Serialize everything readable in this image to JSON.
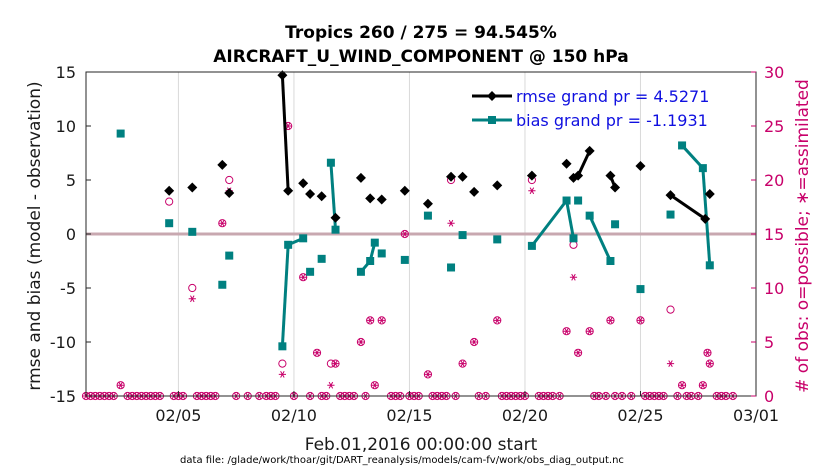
{
  "chart_data": {
    "type": "line",
    "title_line1": "Tropics 260 / 275 = 94.545%",
    "title_line2": "AIRCRAFT_U_WIND_COMPONENT @ 150 hPa",
    "xlabel": "Feb.01,2016 00:00:00 start",
    "ylabel_left": "rmse and bias (model - observation)",
    "ylabel_right": "# of obs: o=possible; ∗=assimilated",
    "footer": "data file: /glade/work/thoar/git/DART_reanalysis/models/cam-fv/work/obs_diag_output.nc",
    "x_range": [
      1.0,
      30.0
    ],
    "ylim_left": [
      -15,
      15
    ],
    "ylim_right": [
      0,
      30
    ],
    "x_ticks": [
      {
        "x": 5,
        "label": "02/05"
      },
      {
        "x": 10,
        "label": "02/10"
      },
      {
        "x": 15,
        "label": "02/15"
      },
      {
        "x": 20,
        "label": "02/20"
      },
      {
        "x": 25,
        "label": "02/25"
      },
      {
        "x": 30,
        "label": "03/01"
      }
    ],
    "y_ticks_left": [
      15,
      10,
      5,
      0,
      -5,
      -10,
      -15
    ],
    "y_tick_labels_left": [
      "15",
      "10",
      "5",
      "0",
      "-5",
      "-10",
      "-15"
    ],
    "y_ticks_right": [
      30,
      25,
      20,
      15,
      10,
      5,
      0
    ],
    "y_tick_labels_right": [
      "30",
      "25",
      "20",
      "15",
      "10",
      "5",
      "0"
    ],
    "colors": {
      "rmse": "#000000",
      "bias": "#008080",
      "obs": "#c8006a",
      "zero_line": "#c8a8b0",
      "legend_text": "#1010e0",
      "grid": "#d9d9d9"
    },
    "series": [
      {
        "name": "rmse",
        "legend": "rmse grand pr = 4.5271",
        "points": [
          [
            4.6,
            4.0
          ],
          [
            5.6,
            4.3
          ],
          [
            6.9,
            6.4
          ],
          [
            7.2,
            3.8
          ],
          [
            9.5,
            14.7
          ],
          [
            9.75,
            4.0
          ],
          [
            10.4,
            4.7
          ],
          [
            10.7,
            3.7
          ],
          [
            11.2,
            3.5
          ],
          [
            11.8,
            1.5
          ],
          [
            12.9,
            5.2
          ],
          [
            13.3,
            3.3
          ],
          [
            13.8,
            3.2
          ],
          [
            14.8,
            4.0
          ],
          [
            15.8,
            2.8
          ],
          [
            16.8,
            5.3
          ],
          [
            17.3,
            5.3
          ],
          [
            17.8,
            3.9
          ],
          [
            18.8,
            4.5
          ],
          [
            20.3,
            5.4
          ],
          [
            21.8,
            6.5
          ],
          [
            22.1,
            5.2
          ],
          [
            22.3,
            5.4
          ],
          [
            22.8,
            7.7
          ],
          [
            23.7,
            5.4
          ],
          [
            23.9,
            4.3
          ],
          [
            25.0,
            6.3
          ],
          [
            26.3,
            3.6
          ],
          [
            27.8,
            1.4
          ],
          [
            28.0,
            3.7
          ]
        ],
        "segments": [
          [
            4,
            5
          ],
          [
            21,
            22
          ],
          [
            22,
            23
          ],
          [
            24,
            25
          ],
          [
            27,
            28
          ]
        ]
      },
      {
        "name": "bias",
        "legend": "bias grand pr = -1.1931",
        "points": [
          [
            2.5,
            9.3
          ],
          [
            4.6,
            1.0
          ],
          [
            5.6,
            0.2
          ],
          [
            6.9,
            -4.7
          ],
          [
            7.2,
            -2.0
          ],
          [
            9.5,
            -10.4
          ],
          [
            9.75,
            -1.0
          ],
          [
            10.4,
            -0.4
          ],
          [
            10.7,
            -3.5
          ],
          [
            11.2,
            -2.3
          ],
          [
            11.6,
            6.6
          ],
          [
            11.8,
            0.4
          ],
          [
            12.9,
            -3.5
          ],
          [
            13.3,
            -2.5
          ],
          [
            13.5,
            -0.8
          ],
          [
            13.8,
            -1.8
          ],
          [
            14.8,
            -2.4
          ],
          [
            15.8,
            1.7
          ],
          [
            16.8,
            -3.1
          ],
          [
            17.3,
            -0.1
          ],
          [
            18.8,
            -0.5
          ],
          [
            20.3,
            -1.1
          ],
          [
            21.8,
            3.1
          ],
          [
            22.1,
            -0.4
          ],
          [
            22.3,
            3.1
          ],
          [
            22.8,
            1.7
          ],
          [
            23.7,
            -2.5
          ],
          [
            23.9,
            0.9
          ],
          [
            25.0,
            -5.1
          ],
          [
            26.3,
            1.8
          ],
          [
            26.8,
            8.2
          ],
          [
            27.7,
            6.1
          ],
          [
            28.0,
            -2.9
          ]
        ],
        "segments": [
          [
            5,
            6
          ],
          [
            6,
            7
          ],
          [
            10,
            11
          ],
          [
            12,
            13
          ],
          [
            13,
            14
          ],
          [
            21,
            22
          ],
          [
            22,
            23
          ],
          [
            25,
            26
          ],
          [
            30,
            31
          ],
          [
            31,
            32
          ]
        ]
      },
      {
        "name": "obs_possible",
        "points": [
          [
            1.0,
            0
          ],
          [
            1.2,
            0
          ],
          [
            1.4,
            0
          ],
          [
            1.6,
            0
          ],
          [
            1.8,
            0
          ],
          [
            2.0,
            0
          ],
          [
            2.2,
            0
          ],
          [
            2.5,
            1
          ],
          [
            2.8,
            0
          ],
          [
            3.0,
            0
          ],
          [
            3.2,
            0
          ],
          [
            3.4,
            0
          ],
          [
            3.6,
            0
          ],
          [
            3.8,
            0
          ],
          [
            4.0,
            0
          ],
          [
            4.2,
            0
          ],
          [
            4.6,
            18.0
          ],
          [
            4.8,
            0
          ],
          [
            5.0,
            0
          ],
          [
            5.2,
            0
          ],
          [
            5.6,
            10.0
          ],
          [
            5.8,
            0
          ],
          [
            6.0,
            0
          ],
          [
            6.2,
            0
          ],
          [
            6.4,
            0
          ],
          [
            6.6,
            0
          ],
          [
            6.9,
            16.0
          ],
          [
            7.2,
            20.0
          ],
          [
            7.5,
            0
          ],
          [
            8.0,
            0
          ],
          [
            8.5,
            0
          ],
          [
            8.8,
            0
          ],
          [
            9.0,
            0
          ],
          [
            9.2,
            0
          ],
          [
            9.5,
            3.0
          ],
          [
            9.75,
            25.0
          ],
          [
            10.0,
            0
          ],
          [
            10.4,
            11.0
          ],
          [
            10.7,
            0
          ],
          [
            11.0,
            4.0
          ],
          [
            11.2,
            0
          ],
          [
            11.4,
            0
          ],
          [
            11.6,
            3.0
          ],
          [
            11.8,
            3.0
          ],
          [
            12.0,
            0
          ],
          [
            12.2,
            0
          ],
          [
            12.4,
            0
          ],
          [
            12.6,
            0
          ],
          [
            12.9,
            5.0
          ],
          [
            13.1,
            0
          ],
          [
            13.3,
            7.0
          ],
          [
            13.5,
            1.0
          ],
          [
            13.8,
            7.0
          ],
          [
            14.2,
            0
          ],
          [
            14.4,
            0
          ],
          [
            14.6,
            0
          ],
          [
            14.8,
            15.0
          ],
          [
            15.0,
            0
          ],
          [
            15.2,
            0
          ],
          [
            15.4,
            0
          ],
          [
            15.8,
            2.0
          ],
          [
            16.0,
            0
          ],
          [
            16.2,
            0
          ],
          [
            16.4,
            0
          ],
          [
            16.6,
            0
          ],
          [
            16.8,
            20.0
          ],
          [
            17.0,
            0
          ],
          [
            17.3,
            3.0
          ],
          [
            17.8,
            5.0
          ],
          [
            18.0,
            0
          ],
          [
            18.3,
            0
          ],
          [
            18.8,
            7.0
          ],
          [
            19.0,
            0
          ],
          [
            19.2,
            0
          ],
          [
            19.4,
            0
          ],
          [
            19.6,
            0
          ],
          [
            19.8,
            0
          ],
          [
            20.0,
            0
          ],
          [
            20.3,
            20.0
          ],
          [
            20.6,
            0
          ],
          [
            20.8,
            0
          ],
          [
            21.0,
            0
          ],
          [
            21.2,
            0
          ],
          [
            21.5,
            0
          ],
          [
            21.8,
            6.0
          ],
          [
            22.1,
            14.0
          ],
          [
            22.3,
            4.0
          ],
          [
            22.8,
            6.0
          ],
          [
            23.0,
            0
          ],
          [
            23.2,
            0
          ],
          [
            23.5,
            0
          ],
          [
            23.7,
            7.0
          ],
          [
            23.9,
            0
          ],
          [
            24.2,
            0
          ],
          [
            24.6,
            0
          ],
          [
            25.0,
            7.0
          ],
          [
            25.2,
            0
          ],
          [
            25.4,
            0
          ],
          [
            25.6,
            0
          ],
          [
            25.8,
            0
          ],
          [
            26.0,
            0
          ],
          [
            26.3,
            8.0
          ],
          [
            26.6,
            0
          ],
          [
            26.8,
            1.0
          ],
          [
            27.0,
            0
          ],
          [
            27.2,
            0
          ],
          [
            27.5,
            0
          ],
          [
            27.7,
            1.0
          ],
          [
            27.9,
            4.0
          ],
          [
            28.0,
            3.0
          ],
          [
            28.3,
            0
          ],
          [
            28.5,
            0
          ],
          [
            28.7,
            0
          ],
          [
            29.0,
            0
          ]
        ]
      },
      {
        "name": "obs_assimilated",
        "points": [
          [
            1.0,
            0
          ],
          [
            1.2,
            0
          ],
          [
            1.4,
            0
          ],
          [
            1.6,
            0
          ],
          [
            1.8,
            0
          ],
          [
            2.0,
            0
          ],
          [
            2.2,
            0
          ],
          [
            2.5,
            1
          ],
          [
            2.8,
            0
          ],
          [
            3.0,
            0
          ],
          [
            3.2,
            0
          ],
          [
            3.4,
            0
          ],
          [
            3.6,
            0
          ],
          [
            3.8,
            0
          ],
          [
            4.0,
            0
          ],
          [
            4.2,
            0
          ],
          [
            4.6,
            16.0
          ],
          [
            4.8,
            0
          ],
          [
            5.0,
            0
          ],
          [
            5.2,
            0
          ],
          [
            5.6,
            9.0
          ],
          [
            5.8,
            0
          ],
          [
            6.0,
            0
          ],
          [
            6.2,
            0
          ],
          [
            6.4,
            0
          ],
          [
            6.6,
            0
          ],
          [
            6.9,
            16.0
          ],
          [
            7.2,
            19.0
          ],
          [
            7.5,
            0
          ],
          [
            8.0,
            0
          ],
          [
            8.5,
            0
          ],
          [
            8.8,
            0
          ],
          [
            9.0,
            0
          ],
          [
            9.2,
            0
          ],
          [
            9.5,
            2.0
          ],
          [
            9.75,
            25.0
          ],
          [
            10.0,
            0
          ],
          [
            10.4,
            11.0
          ],
          [
            10.7,
            0
          ],
          [
            11.0,
            4.0
          ],
          [
            11.2,
            0
          ],
          [
            11.4,
            0
          ],
          [
            11.6,
            1.0
          ],
          [
            11.8,
            3.0
          ],
          [
            12.0,
            0
          ],
          [
            12.2,
            0
          ],
          [
            12.4,
            0
          ],
          [
            12.6,
            0
          ],
          [
            12.9,
            5.0
          ],
          [
            13.1,
            0
          ],
          [
            13.3,
            7.0
          ],
          [
            13.5,
            1.0
          ],
          [
            13.8,
            7.0
          ],
          [
            14.2,
            0
          ],
          [
            14.4,
            0
          ],
          [
            14.6,
            0
          ],
          [
            14.8,
            15.0
          ],
          [
            15.0,
            0
          ],
          [
            15.2,
            0
          ],
          [
            15.4,
            0
          ],
          [
            15.8,
            2.0
          ],
          [
            16.0,
            0
          ],
          [
            16.2,
            0
          ],
          [
            16.4,
            0
          ],
          [
            16.6,
            0
          ],
          [
            16.8,
            16.0
          ],
          [
            17.0,
            0
          ],
          [
            17.3,
            3.0
          ],
          [
            17.8,
            5.0
          ],
          [
            18.0,
            0
          ],
          [
            18.3,
            0
          ],
          [
            18.8,
            7.0
          ],
          [
            19.0,
            0
          ],
          [
            19.2,
            0
          ],
          [
            19.4,
            0
          ],
          [
            19.6,
            0
          ],
          [
            19.8,
            0
          ],
          [
            20.0,
            0
          ],
          [
            20.3,
            19.0
          ],
          [
            20.6,
            0
          ],
          [
            20.8,
            0
          ],
          [
            21.0,
            0
          ],
          [
            21.2,
            0
          ],
          [
            21.5,
            0
          ],
          [
            21.8,
            6.0
          ],
          [
            22.1,
            11.0
          ],
          [
            22.3,
            4.0
          ],
          [
            22.8,
            6.0
          ],
          [
            23.0,
            0
          ],
          [
            23.2,
            0
          ],
          [
            23.5,
            0
          ],
          [
            23.7,
            7.0
          ],
          [
            23.9,
            0
          ],
          [
            24.2,
            0
          ],
          [
            24.6,
            0
          ],
          [
            25.0,
            7.0
          ],
          [
            25.2,
            0
          ],
          [
            25.4,
            0
          ],
          [
            25.6,
            0
          ],
          [
            25.8,
            0
          ],
          [
            26.0,
            0
          ],
          [
            26.3,
            3.0
          ],
          [
            26.6,
            0
          ],
          [
            26.8,
            1.0
          ],
          [
            27.0,
            0
          ],
          [
            27.2,
            0
          ],
          [
            27.5,
            0
          ],
          [
            27.7,
            1.0
          ],
          [
            27.9,
            4.0
          ],
          [
            28.0,
            3.0
          ],
          [
            28.3,
            0
          ],
          [
            28.5,
            0
          ],
          [
            28.7,
            0
          ],
          [
            29.0,
            0
          ]
        ]
      }
    ]
  }
}
